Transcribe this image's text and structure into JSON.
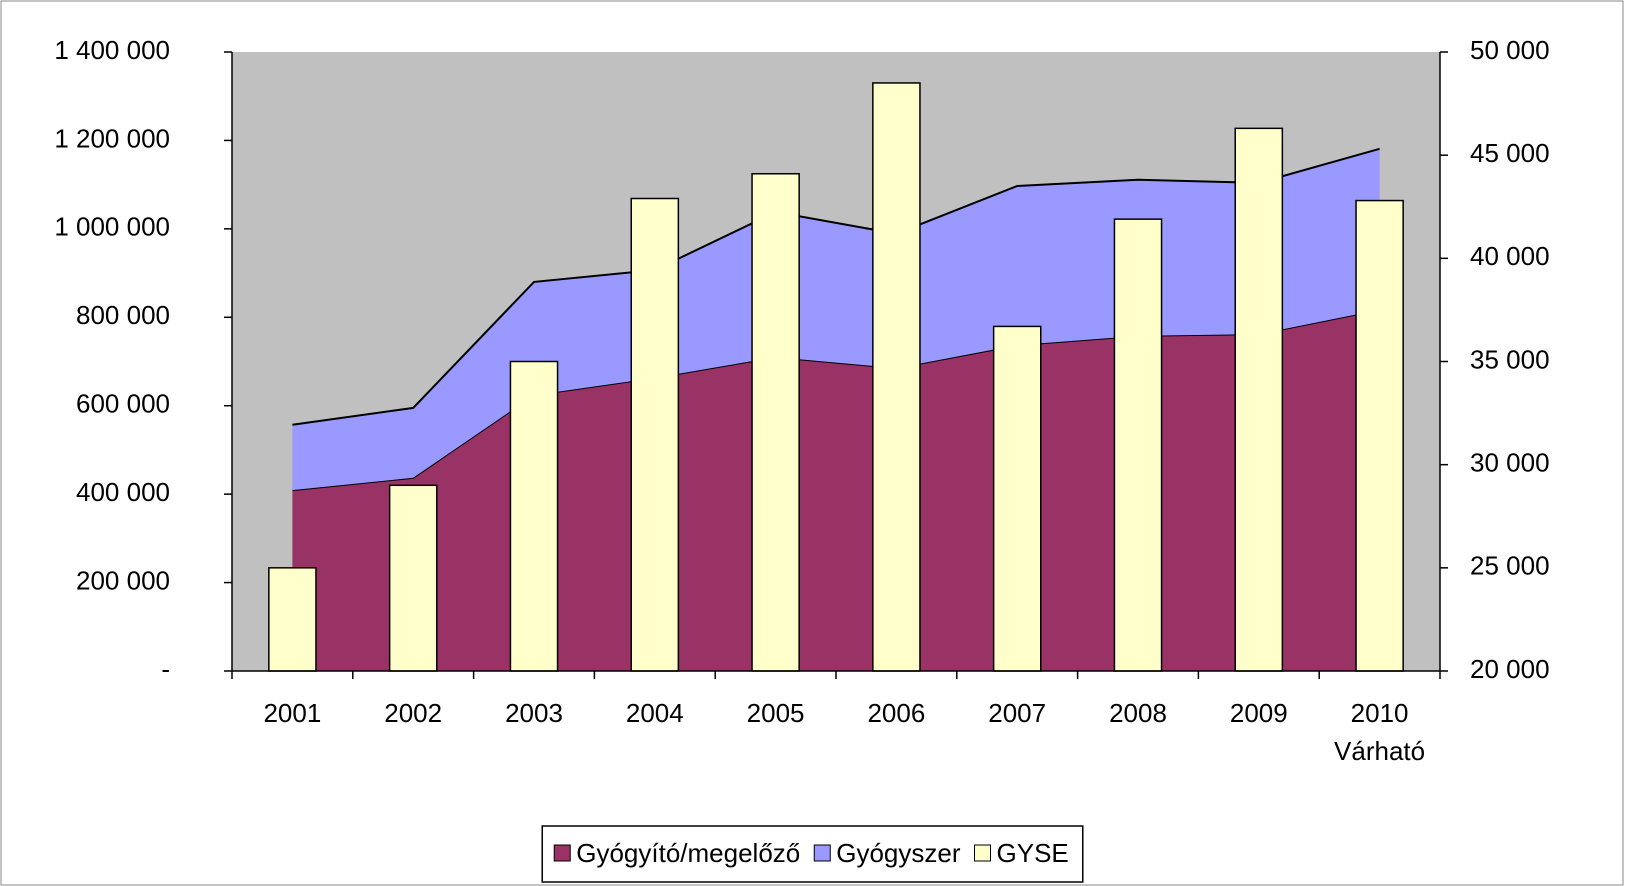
{
  "chart_data": {
    "type": "area-bar",
    "categories": [
      "2001",
      "2002",
      "2003",
      "2004",
      "2005",
      "2006",
      "2007",
      "2008",
      "2009",
      "2010"
    ],
    "annotation": "Várható",
    "series": [
      {
        "name": "Gyógyító/megelőző",
        "color": "#993366",
        "kind": "area",
        "values": [
          409000,
          437000,
          624000,
          663000,
          710000,
          685000,
          737000,
          758000,
          762000,
          817000
        ]
      },
      {
        "name": "Gyógyszer",
        "color": "#9999ff",
        "kind": "area",
        "values": [
          148000,
          158000,
          256000,
          244000,
          328000,
          304000,
          360000,
          353000,
          342000,
          364000
        ]
      },
      {
        "name": "GYSE",
        "color": "#ffffcc",
        "kind": "bar",
        "axis": "y2",
        "values": [
          25000,
          29000,
          35000,
          42900,
          44100,
          48500,
          36700,
          41900,
          46300,
          42800
        ]
      }
    ],
    "ylim": [
      0,
      1400000
    ],
    "yticks": [
      {
        "value": 0,
        "label": "-"
      },
      {
        "value": 200000,
        "label": "200 000"
      },
      {
        "value": 400000,
        "label": "400 000"
      },
      {
        "value": 600000,
        "label": "600 000"
      },
      {
        "value": 800000,
        "label": "800 000"
      },
      {
        "value": 1000000,
        "label": "1 000 000"
      },
      {
        "value": 1200000,
        "label": "1 200 000"
      },
      {
        "value": 1400000,
        "label": "1 400 000"
      }
    ],
    "y2lim": [
      20000,
      50000
    ],
    "y2ticks": [
      {
        "value": 20000,
        "label": "20 000"
      },
      {
        "value": 25000,
        "label": "25 000"
      },
      {
        "value": 30000,
        "label": "30 000"
      },
      {
        "value": 35000,
        "label": "35 000"
      },
      {
        "value": 40000,
        "label": "40 000"
      },
      {
        "value": 45000,
        "label": "45 000"
      },
      {
        "value": 50000,
        "label": "50 000"
      }
    ],
    "legend": "bottom",
    "plot_background": "#c0c0c0"
  }
}
